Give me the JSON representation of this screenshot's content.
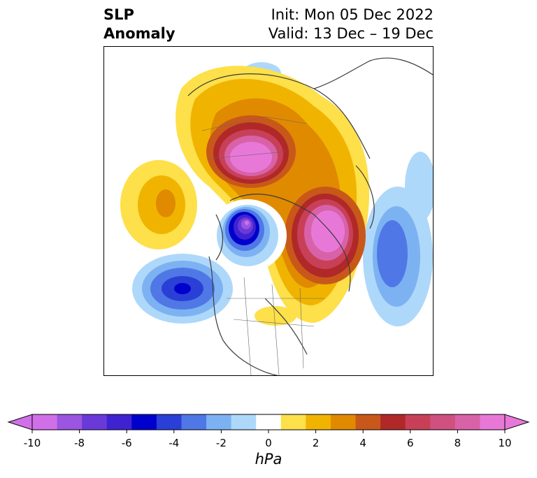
{
  "header": {
    "title_line1": "SLP",
    "title_line2": "Anomaly",
    "init_text": "Init: Mon 05 Dec 2022",
    "valid_text": "Valid: 13 Dec – 19 Dec"
  },
  "colorbar": {
    "unit": "hPa",
    "ticks": [
      "-10",
      "-8",
      "-6",
      "-4",
      "-2",
      "0",
      "2",
      "4",
      "6",
      "8",
      "10"
    ],
    "colors": [
      "#d070e8",
      "#9b55e0",
      "#6a3ad8",
      "#3f22d0",
      "#0000cc",
      "#2a3fd6",
      "#4f78e6",
      "#7db2f2",
      "#aed8fa",
      "#ffffff",
      "#fde04a",
      "#f0b400",
      "#e08a00",
      "#c8581a",
      "#b02828",
      "#c84058",
      "#d05080",
      "#d862a8",
      "#e878d8"
    ]
  },
  "map": {
    "variable": "SLP anomaly",
    "features": [
      {
        "name": "positive-anomaly-greenland-arctic",
        "peak_hpa": 10
      },
      {
        "name": "positive-anomaly-scandinavia-northsea",
        "peak_hpa": 10
      },
      {
        "name": "positive-anomaly-north-pacific-west",
        "peak_hpa": 4
      },
      {
        "name": "negative-anomaly-alaska-bering",
        "peak_hpa": -10
      },
      {
        "name": "negative-anomaly-north-pacific",
        "peak_hpa": -6
      },
      {
        "name": "negative-anomaly-north-atlantic-east",
        "peak_hpa": -4
      }
    ]
  }
}
